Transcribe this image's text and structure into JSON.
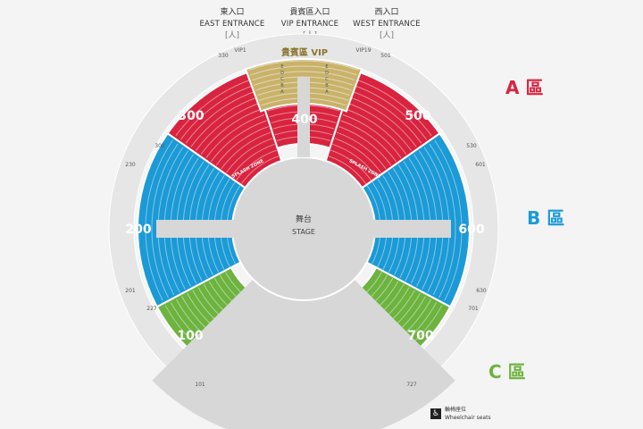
{
  "entrances": [
    {
      "zh": "東入口",
      "en": "EAST ENTRANCE",
      "door": "[人]"
    },
    {
      "zh": "貴賓區入口",
      "en": "VIP ENTRANCE",
      "door": "[人]"
    },
    {
      "zh": "西入口",
      "en": "WEST ENTRANCE",
      "door": "[人]"
    }
  ],
  "stage": {
    "zh": "舞台",
    "en": "STAGE"
  },
  "sections": [
    {
      "id": "300",
      "label": "300"
    },
    {
      "id": "400",
      "label": "400"
    },
    {
      "id": "500",
      "label": "500"
    },
    {
      "id": "200",
      "label": "200"
    },
    {
      "id": "600",
      "label": "600"
    },
    {
      "id": "100",
      "label": "100"
    },
    {
      "id": "700",
      "label": "700"
    }
  ],
  "vip": {
    "label": "貴賓區 VIP",
    "boxes": [
      "VIP1",
      "VIP19"
    ],
    "rows": [
      "E",
      "D",
      "C",
      "B",
      "A"
    ]
  },
  "seat_numbers": [
    "330",
    "501",
    "301",
    "530",
    "230",
    "601",
    "201",
    "630",
    "227",
    "701",
    "101",
    "727"
  ],
  "splash_zones": [
    "SPLASH ZONE",
    "SPLASH ZONE"
  ],
  "zones": [
    {
      "name": "A 區",
      "color": "#d8243f"
    },
    {
      "name": "B 區",
      "color": "#1b9ad6"
    },
    {
      "name": "C 區",
      "color": "#6db33f"
    }
  ],
  "colors": {
    "red": "#d8243f",
    "blue": "#1b9ad6",
    "green": "#6db33f",
    "vip": "#c9b26a",
    "floor": "#d7d7d7",
    "ring": "#e6e6e6",
    "background": "#f4f4f4"
  },
  "legend": {
    "icon": "wheelchair-icon",
    "zh": "輪椅座位",
    "en": "Wheelchair seats"
  }
}
